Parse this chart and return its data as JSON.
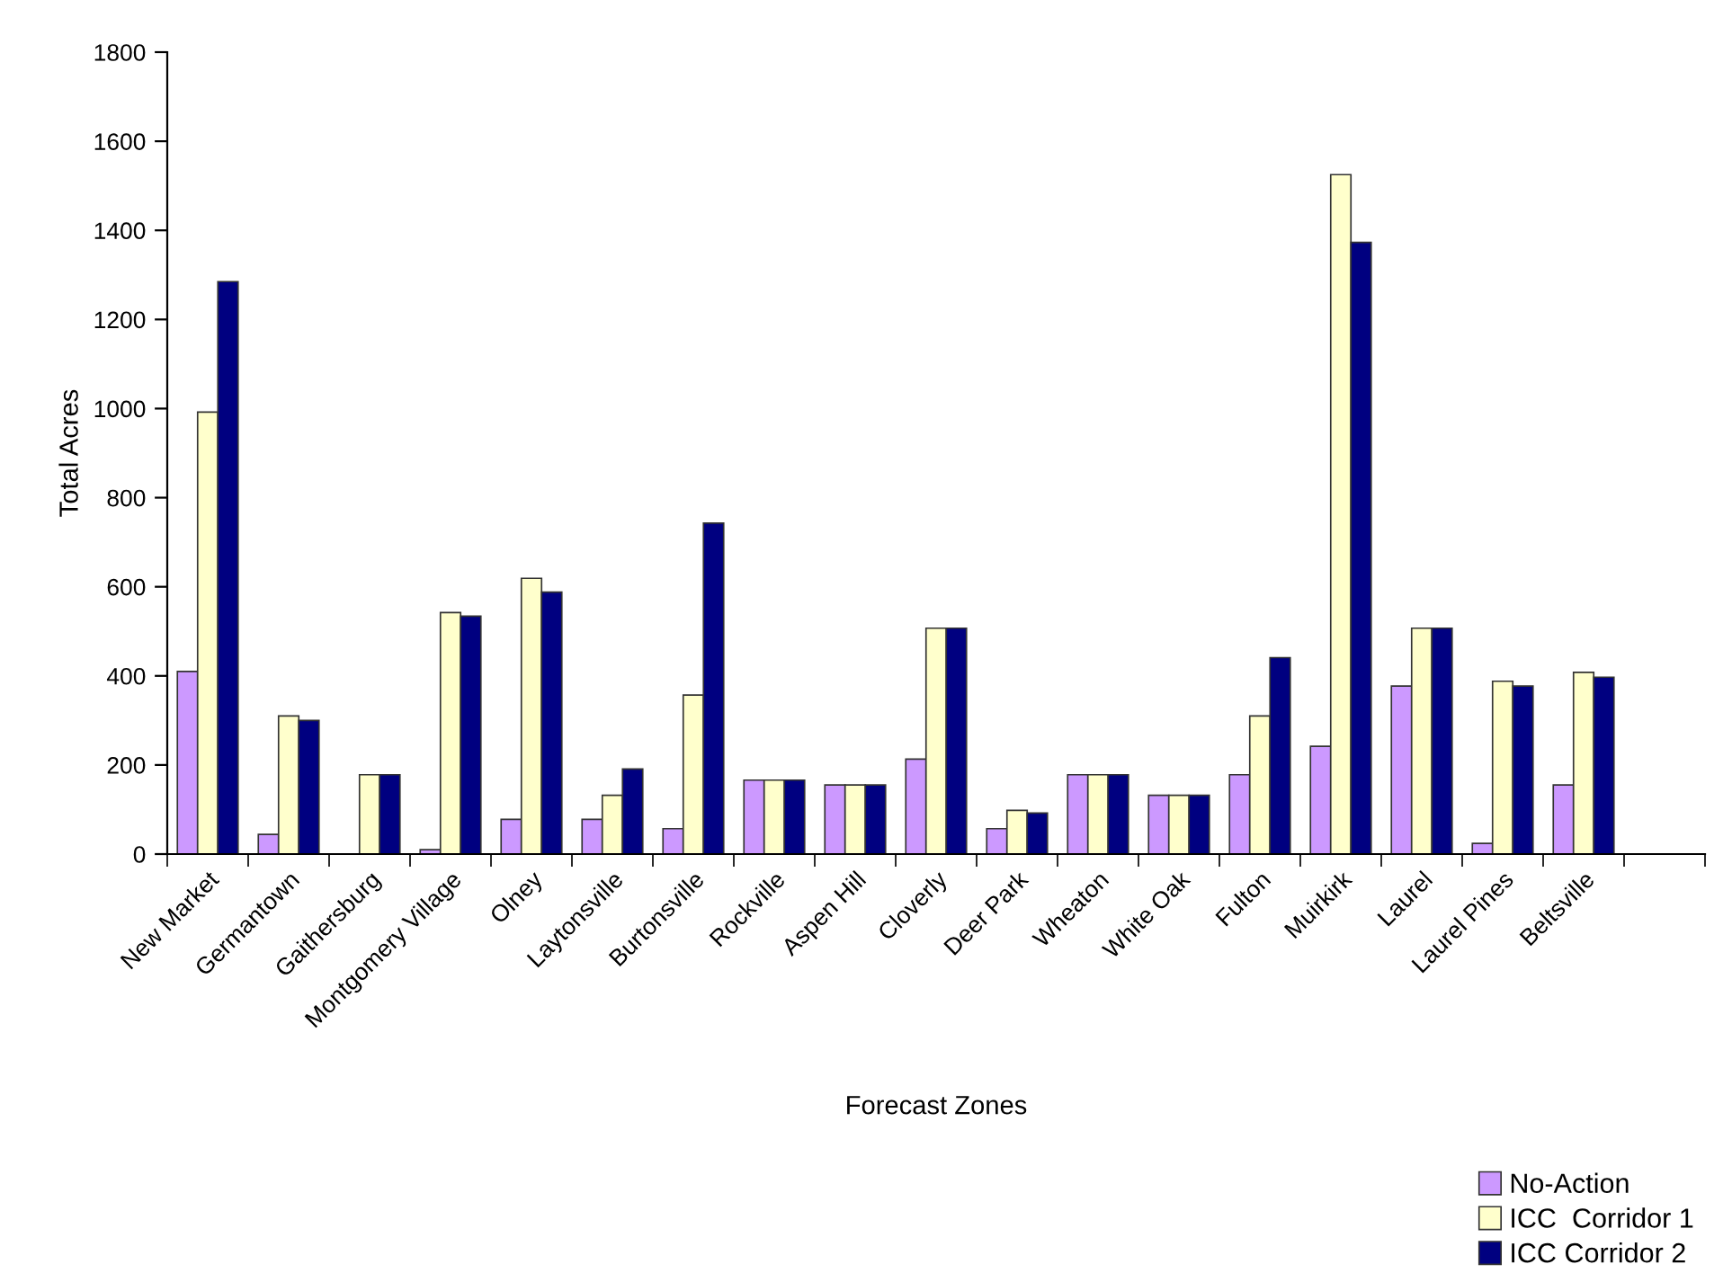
{
  "chart_data": {
    "type": "bar",
    "xlabel": "Forecast Zones",
    "ylabel": "Total Acres",
    "categories": [
      "New Market",
      "Germantown",
      "Gaithersburg",
      "Montgomery Village",
      "Olney",
      "Laytonsville",
      "Burtonsville",
      "Rockville",
      "Aspen Hill",
      "Cloverly",
      "Deer Park",
      "Wheaton",
      "White Oak",
      "Fulton",
      "Muirkirk",
      "Laurel",
      "Laurel Pines",
      "Beltsville",
      null
    ],
    "series": [
      {
        "name": "No-Action",
        "color": "#cc99ff",
        "values": [
          410,
          44,
          null,
          10,
          78,
          78,
          57,
          166,
          155,
          213,
          57,
          178,
          132,
          178,
          242,
          377,
          24,
          155,
          null
        ]
      },
      {
        "name": "ICC  Corridor 1",
        "color": "#ffffcc",
        "values": [
          992,
          310,
          178,
          542,
          619,
          132,
          357,
          166,
          155,
          507,
          98,
          178,
          132,
          310,
          1525,
          507,
          388,
          408,
          null
        ]
      },
      {
        "name": "ICC Corridor 2",
        "color": "#000080",
        "values": [
          1285,
          300,
          178,
          534,
          588,
          191,
          743,
          166,
          155,
          507,
          92,
          178,
          132,
          441,
          1373,
          507,
          377,
          397,
          null
        ]
      }
    ],
    "ylim": [
      0,
      1800
    ],
    "yticks": [
      0,
      200,
      400,
      600,
      800,
      1000,
      1200,
      1400,
      1600,
      1800
    ],
    "grid": false,
    "legend": "bottom right"
  }
}
